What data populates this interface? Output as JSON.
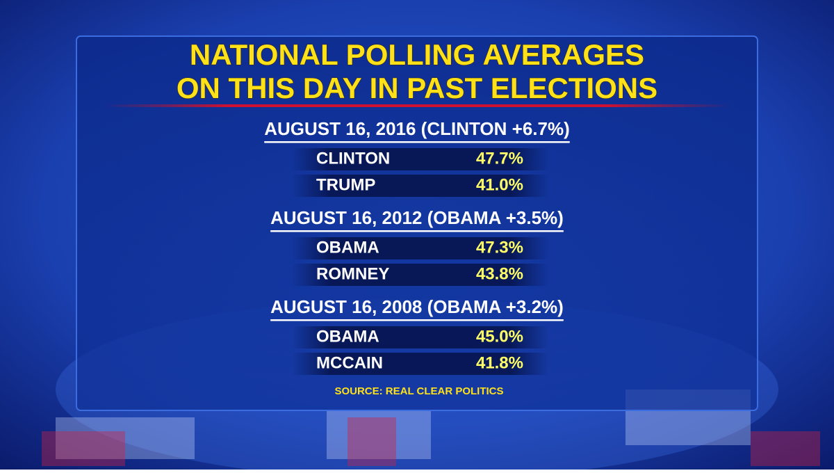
{
  "title": [
    "NATIONAL POLLING AVERAGES",
    "ON THIS DAY IN PAST ELECTIONS"
  ],
  "sections": [
    {
      "heading": "AUGUST 16, 2016 (CLINTON +6.7%)",
      "rows": [
        [
          "CLINTON",
          "47.7%"
        ],
        [
          "TRUMP",
          "41.0%"
        ]
      ]
    },
    {
      "heading": "AUGUST 16, 2012 (OBAMA +3.5%)",
      "rows": [
        [
          "OBAMA",
          "47.3%"
        ],
        [
          "ROMNEY",
          "43.8%"
        ]
      ]
    },
    {
      "heading": "AUGUST 16, 2008 (OBAMA +3.2%)",
      "rows": [
        [
          "OBAMA",
          "45.0%"
        ],
        [
          "MCCAIN",
          "41.8%"
        ]
      ]
    }
  ],
  "source": "SOURCE: REAL CLEAR POLITICS"
}
